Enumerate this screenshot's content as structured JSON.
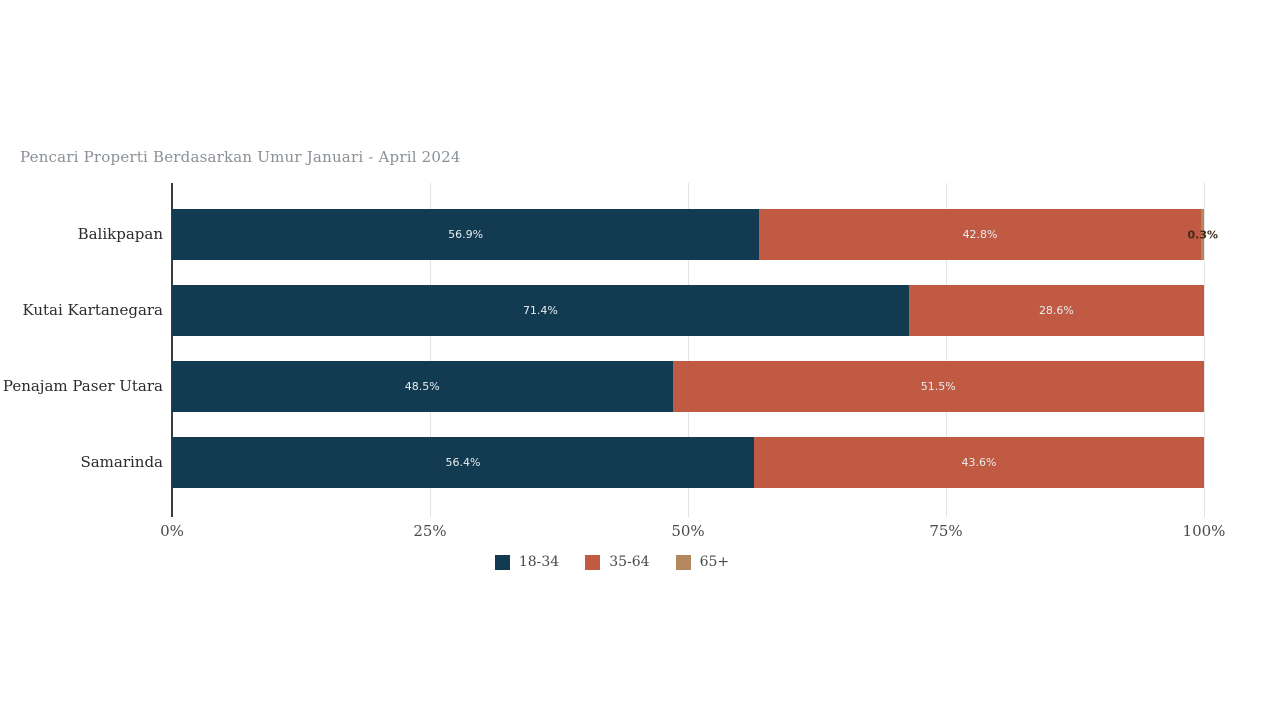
{
  "chart_data": {
    "type": "bar",
    "orientation": "horizontal",
    "stacked": true,
    "title": "Pencari Properti Berdasarkan Umur Januari - April 2024",
    "categories": [
      "Balikpapan",
      "Kutai Kartanegara",
      "Penajam Paser Utara",
      "Samarinda"
    ],
    "series": [
      {
        "name": "18-34",
        "color": "#123a50",
        "values": [
          56.9,
          71.4,
          48.5,
          56.4
        ]
      },
      {
        "name": "35-64",
        "color": "#c05a43",
        "values": [
          42.8,
          28.6,
          51.5,
          43.6
        ]
      },
      {
        "name": "65+",
        "color": "#b3885c",
        "values": [
          0.3,
          0,
          0,
          0
        ]
      }
    ],
    "bar_labels": [
      [
        "56.9%",
        "42.8%",
        "0.3%"
      ],
      [
        "71.4%",
        "28.6%",
        null
      ],
      [
        "48.5%",
        "51.5%",
        null
      ],
      [
        "56.4%",
        "43.6%",
        null
      ]
    ],
    "x_ticks": [
      "0%",
      "25%",
      "50%",
      "75%",
      "100%"
    ],
    "x_tick_values": [
      0,
      25,
      50,
      75,
      100
    ],
    "xlim": [
      0,
      100
    ],
    "grid": true,
    "legend_position": "bottom",
    "colors": {
      "title_text": "#8a9095",
      "category_text": "#2b2b2b",
      "tick_text": "#4a4a4a",
      "grid_line": "#e3e3e3",
      "axis_line": "#3c3c3c",
      "inside_label_text": "#e8edef",
      "outside_label_text": "#3e2c19",
      "background": "#ffffff"
    }
  }
}
